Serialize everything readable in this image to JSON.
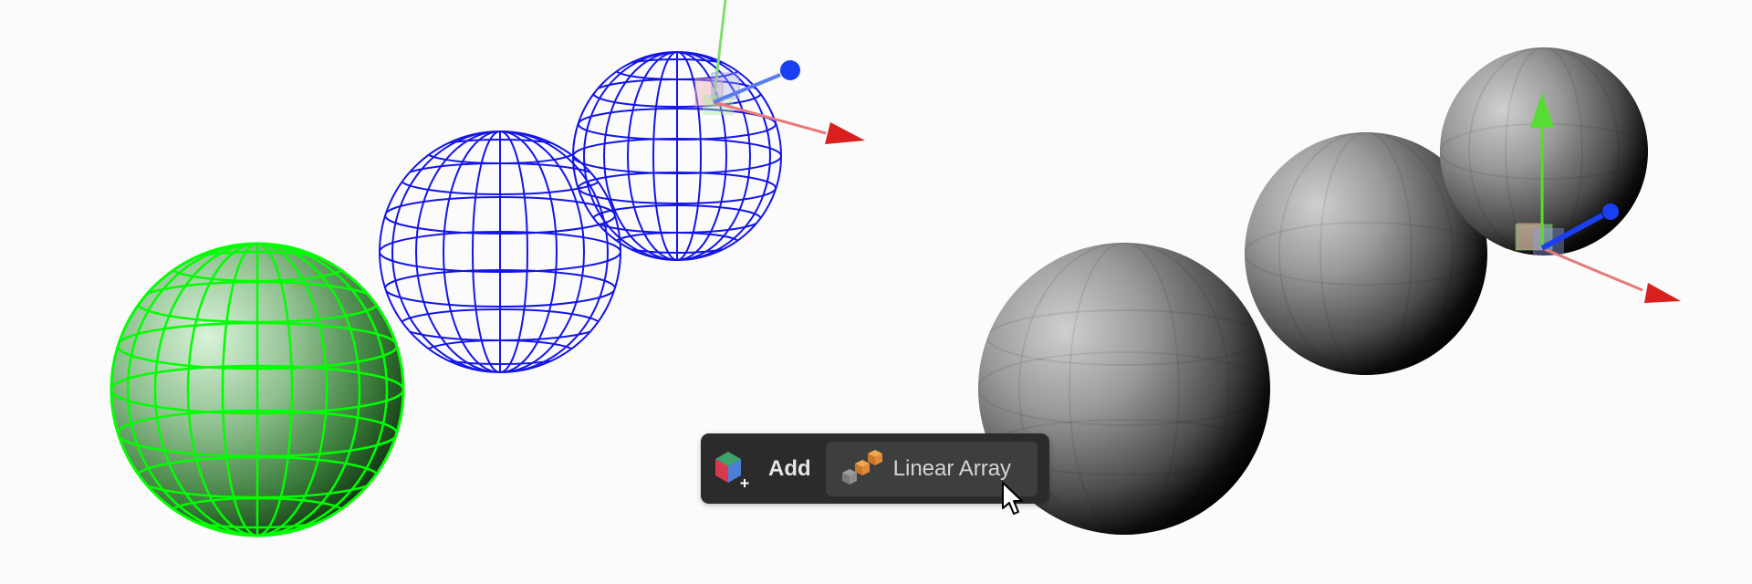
{
  "toolbar": {
    "add_button": {
      "label": "Add",
      "icon": "add-object-icon"
    },
    "linear_array_button": {
      "label": "Linear Array",
      "icon": "linear-array-icon"
    }
  },
  "viewport": {
    "left_group": {
      "selected_object_color": "#00ff00",
      "wireframe_color": "#1010e6"
    },
    "right_group": {
      "shading": "solid gray"
    },
    "gizmo_colors": {
      "x_axis": "#e52222",
      "y_axis": "#55dd33",
      "z_axis": "#1a3ff0"
    }
  },
  "cursor": {
    "icon": "mouse-pointer-icon"
  }
}
